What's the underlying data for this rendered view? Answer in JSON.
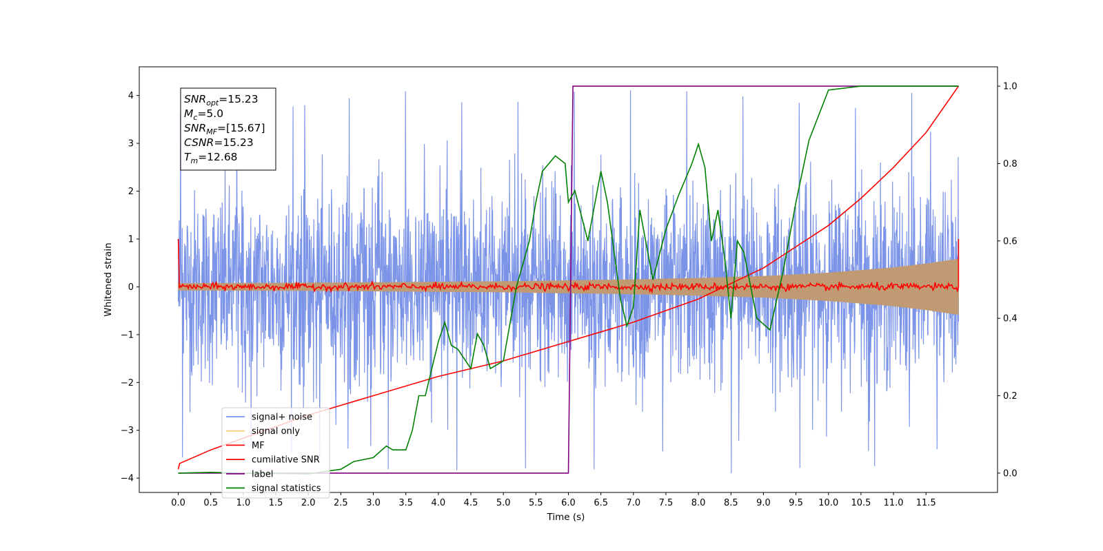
{
  "chart_data": {
    "type": "line",
    "xlabel": "Time (s)",
    "ylabel": "Whitened strain",
    "xlim": [
      -0.6,
      12.6
    ],
    "ylim": [
      -4.3,
      4.6
    ],
    "y2lim": [
      -0.05,
      1.05
    ],
    "x_ticks": [
      0.0,
      0.5,
      1.0,
      1.5,
      2.0,
      2.5,
      3.0,
      3.5,
      4.0,
      4.5,
      5.0,
      5.5,
      6.0,
      6.5,
      7.0,
      7.5,
      8.0,
      8.5,
      9.0,
      9.5,
      10.0,
      10.5,
      11.0,
      11.5
    ],
    "x_tick_labels": [
      "0.0",
      "0.5",
      "1.0",
      "1.5",
      "2.0",
      "2.5",
      "3.0",
      "3.5",
      "4.0",
      "4.5",
      "5.0",
      "5.5",
      "6.0",
      "6.5",
      "7.0",
      "7.5",
      "8.0",
      "8.5",
      "9.0",
      "9.5",
      "10.0",
      "10.5",
      "11.0",
      "11.5"
    ],
    "y_ticks": [
      -4,
      -3,
      -2,
      -1,
      0,
      1,
      2,
      3,
      4
    ],
    "y_tick_labels": [
      "−4",
      "−3",
      "−2",
      "−1",
      "0",
      "1",
      "2",
      "3",
      "4"
    ],
    "y2_ticks": [
      0.0,
      0.2,
      0.4,
      0.6,
      0.8,
      1.0
    ],
    "y2_tick_labels": [
      "0.0",
      "0.2",
      "0.4",
      "0.6",
      "0.8",
      "1.0"
    ],
    "grid": false,
    "legend_position": "lower-left",
    "legend": [
      {
        "label": "signal+ noise",
        "color": "#7b94e8"
      },
      {
        "label": "signal only",
        "color": "#ffcc7f"
      },
      {
        "label": "MF",
        "color": "#ff0000"
      },
      {
        "label": "cumilative SNR",
        "color": "#ff0000"
      },
      {
        "label": "label",
        "color": "#800080"
      },
      {
        "label": "signal statistics",
        "color": "#008000"
      }
    ],
    "annotation": [
      {
        "sym": "SNR",
        "sub": "opt",
        "val": "=15.23"
      },
      {
        "sym": "M",
        "sub": "c",
        "val": "=5.0"
      },
      {
        "sym": "SNR",
        "sub": "MF",
        "val": "=[15.67]"
      },
      {
        "sym": "CSNR",
        "sub": "",
        "val": "=15.23"
      },
      {
        "sym": "T",
        "sub": "m",
        "val": "=12.68"
      }
    ],
    "series": [
      {
        "name": "signal+ noise",
        "axis": "left",
        "style": "noise-band",
        "color": "#7b94e8",
        "x_range": [
          0.0,
          12.0
        ],
        "typical_range": [
          -2.0,
          2.2
        ],
        "extremes": [
          -3.9,
          4.15
        ]
      },
      {
        "name": "signal only",
        "axis": "left",
        "style": "chirp-envelope",
        "color": "#c09a72",
        "x": [
          0.0,
          1.0,
          2.0,
          3.0,
          4.0,
          5.0,
          6.0,
          7.0,
          8.0,
          9.0,
          10.0,
          11.0,
          11.5,
          12.0
        ],
        "amplitude": [
          0.07,
          0.075,
          0.08,
          0.09,
          0.1,
          0.11,
          0.13,
          0.15,
          0.18,
          0.22,
          0.29,
          0.4,
          0.48,
          0.58
        ]
      },
      {
        "name": "MF",
        "axis": "left",
        "style": "jitter",
        "color": "#ff0000",
        "x_range": [
          0.0,
          12.0
        ],
        "level": 0.0,
        "spread": 0.06,
        "endpoints": [
          1.0,
          1.0
        ]
      },
      {
        "name": "cumilative SNR",
        "axis": "right",
        "color": "#ff0000",
        "x": [
          0.0,
          0.02,
          0.5,
          1.0,
          2.0,
          3.0,
          4.0,
          5.0,
          6.0,
          7.0,
          8.0,
          9.0,
          10.0,
          10.5,
          11.0,
          11.5,
          12.0
        ],
        "y": [
          0.01,
          0.025,
          0.06,
          0.09,
          0.15,
          0.2,
          0.25,
          0.29,
          0.34,
          0.39,
          0.45,
          0.53,
          0.64,
          0.71,
          0.79,
          0.88,
          1.0
        ]
      },
      {
        "name": "label",
        "axis": "right",
        "color": "#800080",
        "x": [
          0.0,
          6.0,
          6.07,
          12.0
        ],
        "y": [
          0.0,
          0.0,
          1.0,
          1.0
        ]
      },
      {
        "name": "signal statistics",
        "axis": "right",
        "color": "#008000",
        "x": [
          0.0,
          0.5,
          1.0,
          2.0,
          2.5,
          2.7,
          3.0,
          3.2,
          3.3,
          3.5,
          3.6,
          3.7,
          3.8,
          3.9,
          4.0,
          4.1,
          4.2,
          4.3,
          4.5,
          4.6,
          4.7,
          4.8,
          5.0,
          5.2,
          5.4,
          5.5,
          5.6,
          5.8,
          5.95,
          6.0,
          6.1,
          6.3,
          6.5,
          6.6,
          6.8,
          6.9,
          7.0,
          7.1,
          7.3,
          7.5,
          7.7,
          7.9,
          8.0,
          8.1,
          8.2,
          8.3,
          8.4,
          8.5,
          8.6,
          8.7,
          8.9,
          9.1,
          9.3,
          9.5,
          9.7,
          10.0,
          10.5,
          11.0,
          12.0
        ],
        "y": [
          0.0,
          0.002,
          0.0,
          -0.002,
          0.01,
          0.03,
          0.04,
          0.07,
          0.06,
          0.06,
          0.11,
          0.2,
          0.2,
          0.27,
          0.34,
          0.39,
          0.33,
          0.32,
          0.27,
          0.36,
          0.33,
          0.27,
          0.29,
          0.48,
          0.6,
          0.7,
          0.78,
          0.82,
          0.8,
          0.7,
          0.73,
          0.6,
          0.78,
          0.7,
          0.45,
          0.38,
          0.43,
          0.68,
          0.5,
          0.63,
          0.72,
          0.8,
          0.85,
          0.79,
          0.6,
          0.68,
          0.56,
          0.4,
          0.6,
          0.57,
          0.4,
          0.37,
          0.52,
          0.7,
          0.86,
          0.99,
          1.0,
          1.0,
          1.0
        ]
      }
    ]
  }
}
